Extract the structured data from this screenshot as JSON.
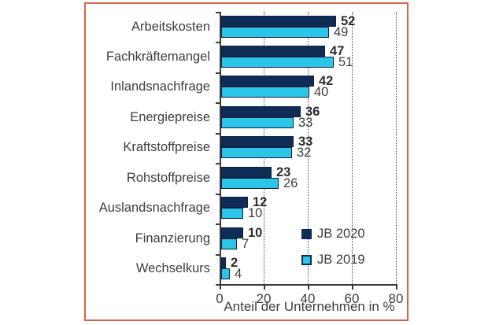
{
  "chart_data": {
    "type": "bar",
    "orientation": "horizontal",
    "categories": [
      "Arbeitskosten",
      "Fachkräftemangel",
      "Inlandsnachfrage",
      "Energiepreise",
      "Kraftstoffpreise",
      "Rohstoffpreise",
      "Auslandsnachfrage",
      "Finanzierung",
      "Wechselkurs"
    ],
    "series": [
      {
        "name": "JB 2020",
        "color": "#0e2c55",
        "values": [
          52,
          47,
          42,
          36,
          33,
          23,
          12,
          10,
          2
        ]
      },
      {
        "name": "JB 2019",
        "color": "#2cc5ea",
        "values": [
          49,
          51,
          40,
          33,
          32,
          26,
          10,
          7,
          4
        ]
      }
    ],
    "xlabel": "Anteil der Unternehmen in %",
    "xlim": [
      0,
      80
    ],
    "xticks": [
      0,
      20,
      40,
      60,
      80
    ],
    "grid": "vertical-dotted-at-xticks",
    "legend_position": "inside-lower-right",
    "value_labels": "end-of-bar",
    "frame_border_color": "#d96247"
  }
}
